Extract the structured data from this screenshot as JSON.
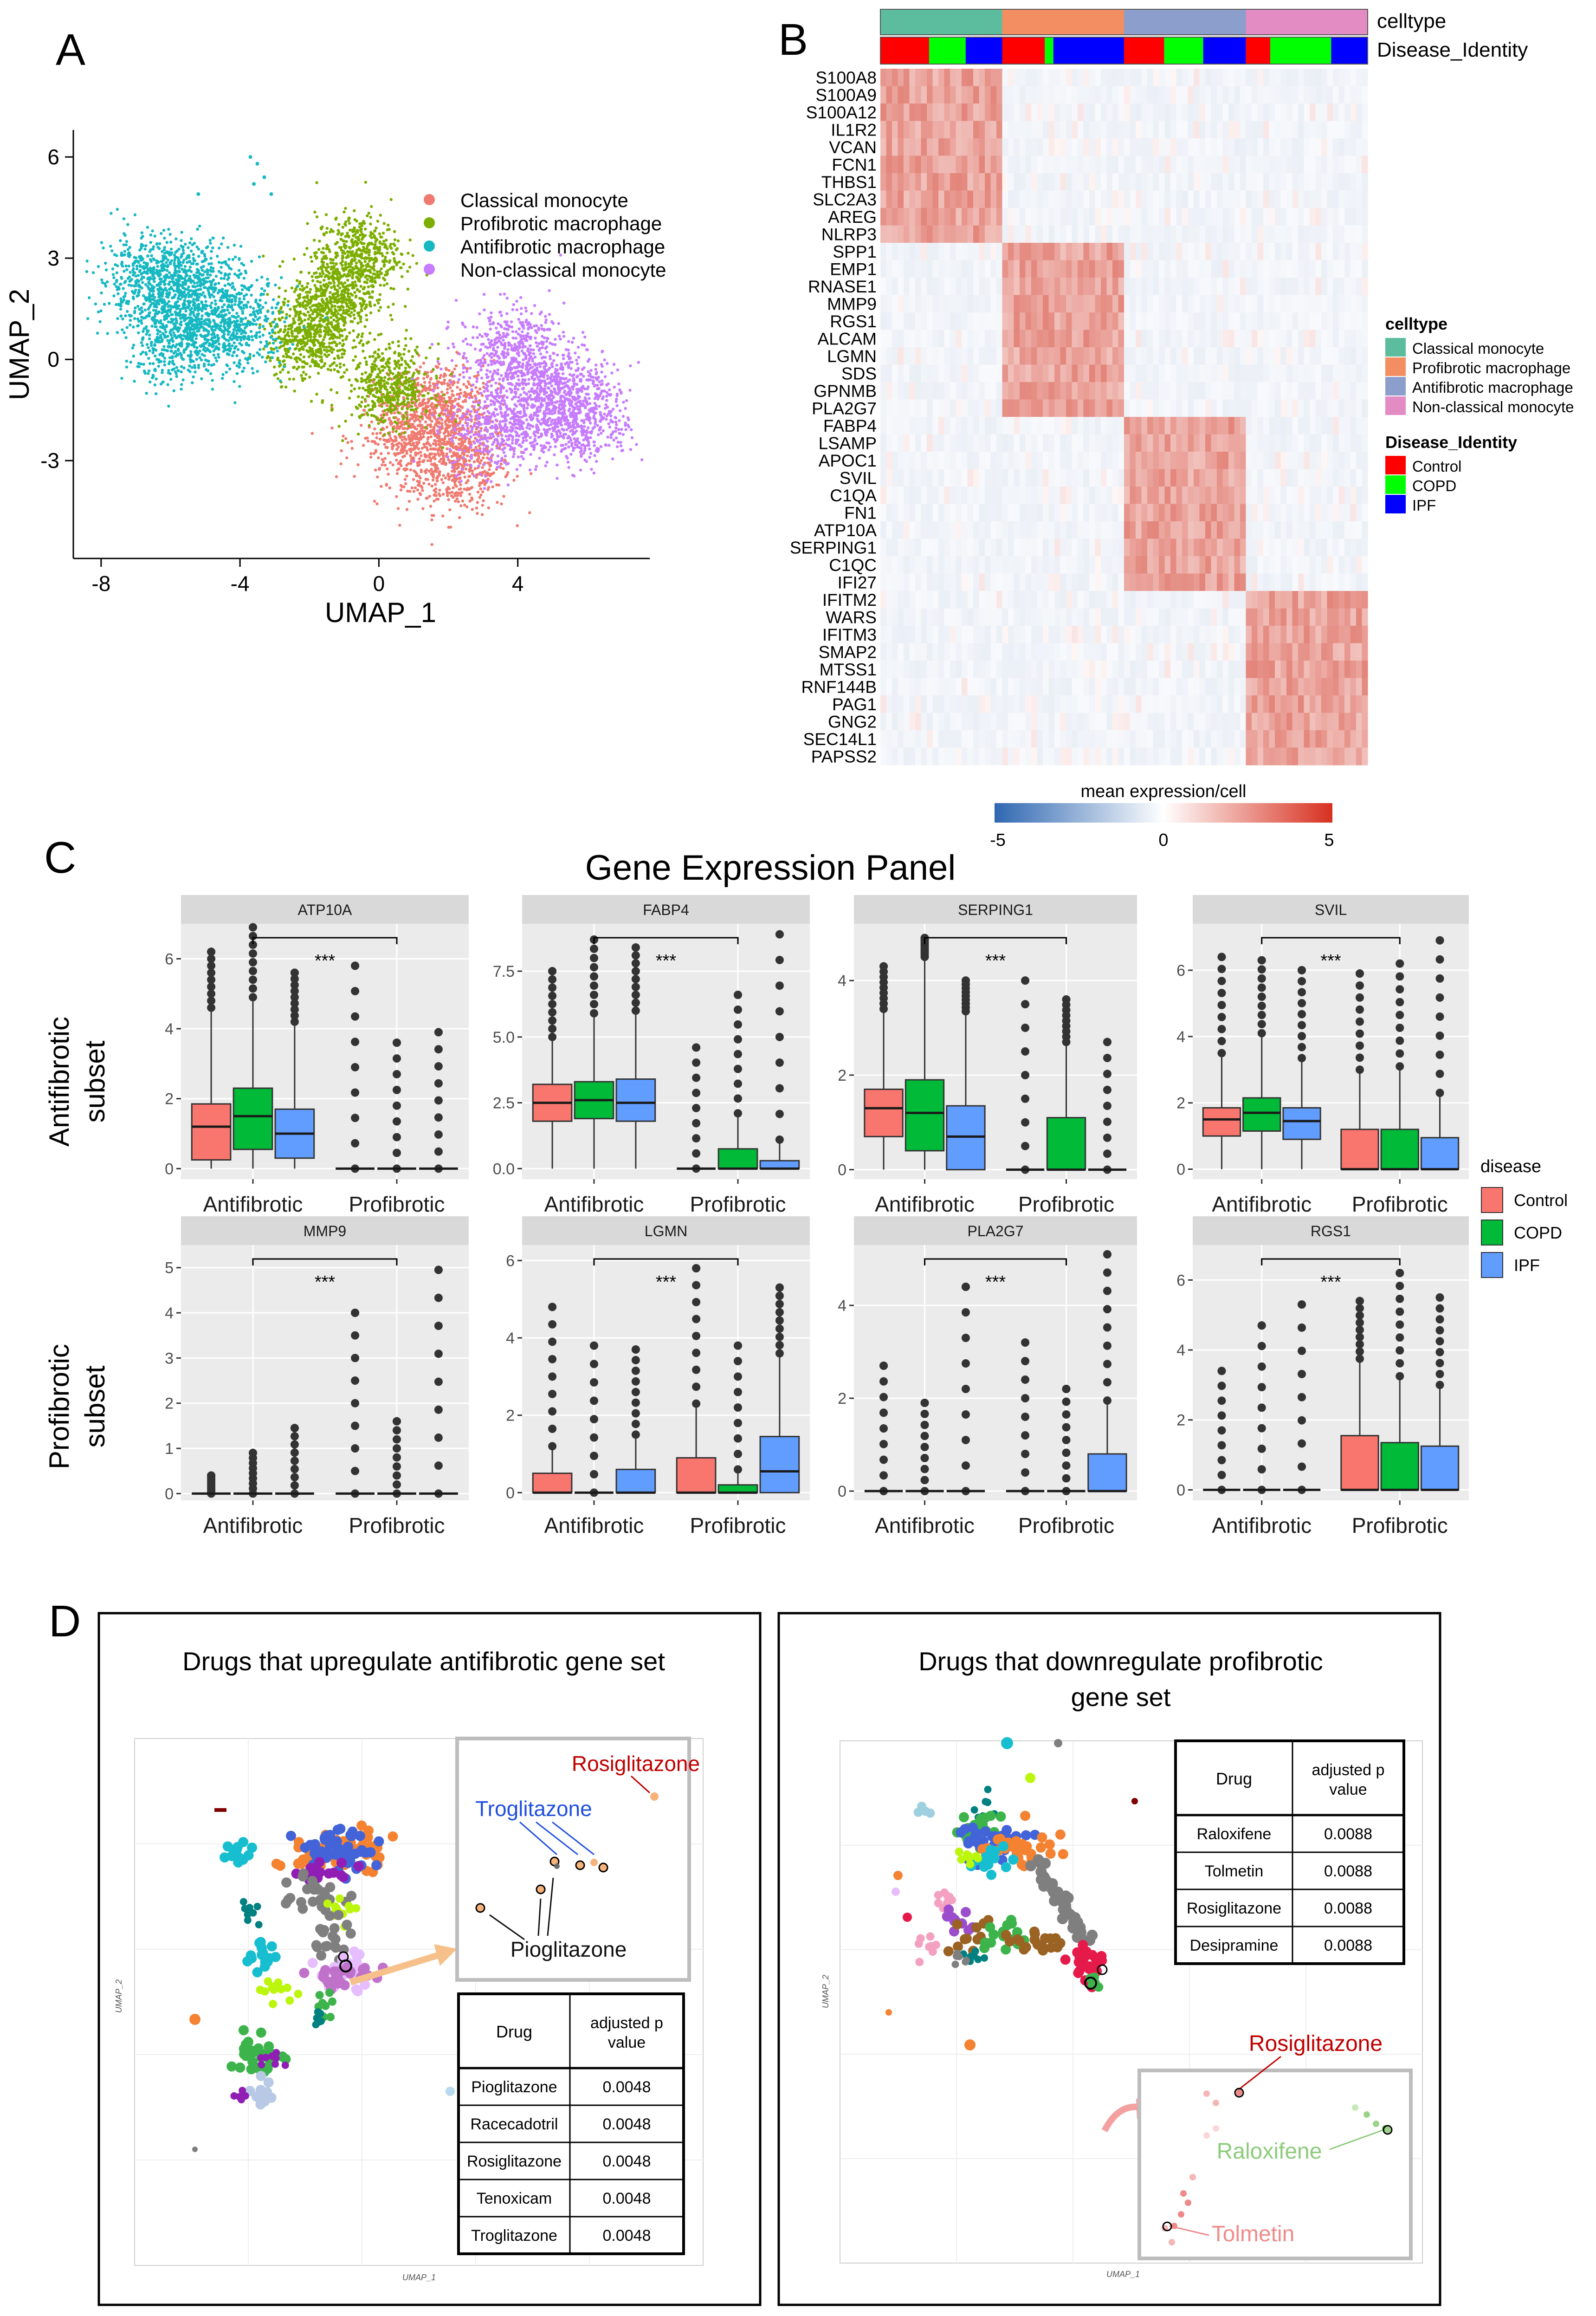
{
  "panel_labels": {
    "a": "A",
    "b": "B",
    "c": "C",
    "d": "D"
  },
  "colors": {
    "classical": "#F07A70",
    "profibrotic": "#7CAE00",
    "antifibrotic": "#16B8C2",
    "nonclassical": "#C77CFF",
    "ct_classical": "#5CBD9E",
    "ct_profibrotic": "#F28E62",
    "ct_antifibrotic": "#8C9ECB",
    "ct_nonclassical": "#E38BC3",
    "control": "#FF0000",
    "copd": "#00FF00",
    "ipf": "#0000FF",
    "box_control": "#F8766D",
    "box_copd": "#00BA38",
    "box_ipf": "#619CFF",
    "ggplot_bg": "#EBEBEB",
    "strip_bg": "#D9D9D9"
  },
  "chart_data": [
    {
      "type": "scatter",
      "panel": "A",
      "xlabel": "UMAP_1",
      "ylabel": "UMAP_2",
      "xlim": [
        -8.8,
        7.8
      ],
      "ylim": [
        -5.9,
        6.8
      ],
      "xticks": [
        "-8",
        "-4",
        "0",
        "4"
      ],
      "xtick_values": [
        -8,
        -4,
        0,
        4
      ],
      "yticks": [
        "-3",
        "0",
        "3",
        "6"
      ],
      "ytick_values": [
        -3,
        0,
        3,
        6
      ],
      "legend": [
        "Classical monocyte",
        "Profibrotic macrophage",
        "Antifibrotic macrophage",
        "Non-classical monocyte"
      ],
      "clusters": [
        {
          "name": "Classical monocyte",
          "color_key": "classical",
          "centers": [
            [
              2.3,
              -3.2
            ],
            [
              1.8,
              -1.4
            ],
            [
              0.9,
              -2.3
            ]
          ],
          "spread": [
            1.0,
            0.9
          ]
        },
        {
          "name": "Profibrotic macrophage",
          "color_key": "profibrotic",
          "centers": [
            [
              -1.3,
              1.8
            ],
            [
              -0.6,
              3.1
            ],
            [
              -2.0,
              0.6
            ],
            [
              0.3,
              -0.8
            ]
          ],
          "spread": [
            0.8,
            0.8
          ]
        },
        {
          "name": "Antifibrotic macrophage",
          "color_key": "antifibrotic",
          "centers": [
            [
              -5.3,
              2.1
            ],
            [
              -6.6,
              2.4
            ],
            [
              -4.2,
              1.0
            ],
            [
              -5.8,
              0.6
            ]
          ],
          "spread": [
            1.0,
            0.9
          ]
        },
        {
          "name": "Non-classical monocyte",
          "color_key": "nonclassical",
          "centers": [
            [
              5.0,
              -0.9
            ],
            [
              3.8,
              0.2
            ],
            [
              5.8,
              -1.8
            ],
            [
              3.5,
              -2.0
            ]
          ],
          "spread": [
            1.0,
            0.9
          ]
        }
      ],
      "outliers": [
        [
          -3.7,
          6.0
        ],
        [
          -3.5,
          5.8
        ],
        [
          -3.3,
          5.4
        ],
        [
          -3.6,
          5.2
        ],
        [
          -3.1,
          4.9
        ],
        [
          -5.2,
          4.9
        ]
      ]
    },
    {
      "type": "heatmap",
      "panel": "B",
      "annotation_rows": [
        "celltype",
        "Disease_Identity"
      ],
      "celltype_segments": [
        "Classical monocyte",
        "Profibrotic macrophage",
        "Antifibrotic macrophage",
        "Non-classical monocyte"
      ],
      "disease_segments": [
        [
          "Control",
          "COPD",
          "IPF"
        ],
        [
          "Control",
          "COPD",
          "IPF"
        ],
        [
          "Control",
          "COPD",
          "IPF"
        ],
        [
          "Control",
          "COPD",
          "IPF"
        ]
      ],
      "disease_fractions": [
        [
          0.4,
          0.3,
          0.3
        ],
        [
          0.35,
          0.07,
          0.58
        ],
        [
          0.33,
          0.32,
          0.35
        ],
        [
          0.2,
          0.5,
          0.3
        ]
      ],
      "genes": [
        "S100A8",
        "S100A9",
        "S100A12",
        "IL1R2",
        "VCAN",
        "FCN1",
        "THBS1",
        "SLC2A3",
        "AREG",
        "NLRP3",
        "SPP1",
        "EMP1",
        "RNASE1",
        "MMP9",
        "RGS1",
        "ALCAM",
        "LGMN",
        "SDS",
        "GPNMB",
        "PLA2G7",
        "FABP4",
        "LSAMP",
        "APOC1",
        "SVIL",
        "C1QA",
        "FN1",
        "ATP10A",
        "SERPING1",
        "C1QC",
        "IFI27",
        "IFITM2",
        "WARS",
        "IFITM3",
        "SMAP2",
        "MTSS1",
        "RNF144B",
        "PAG1",
        "GNG2",
        "SEC14L1",
        "PAPSS2"
      ],
      "gene_group_sizes": [
        10,
        10,
        10,
        10
      ],
      "legend_celltype_title": "celltype",
      "legend_celltype": [
        "Classical monocyte",
        "Profibrotic macrophage",
        "Antifibrotic macrophage",
        "Non-classical monocyte"
      ],
      "legend_disease_title": "Disease_Identity",
      "legend_disease": [
        "Control",
        "COPD",
        "IPF"
      ],
      "colorbar_title": "mean expression/cell",
      "colorbar_range": [
        -5,
        5
      ],
      "colorbar_ticks": [
        "-5",
        "0",
        "5"
      ]
    },
    {
      "type": "box",
      "panel": "C",
      "title": "Gene Expression Panel",
      "categories": [
        "Antifibrotic",
        "Profibrotic"
      ],
      "series_names": [
        "Control",
        "COPD",
        "IPF"
      ],
      "legend_title": "disease",
      "row_labels": [
        [
          "Antifibrotic",
          "subset"
        ],
        [
          "Profibrotic",
          "subset"
        ]
      ],
      "significance": "***",
      "facets": [
        {
          "gene": "ATP10A",
          "ylim": [
            -0.3,
            7.0
          ],
          "yticks": [
            0,
            2,
            4,
            6
          ],
          "ytick_labels": [
            "0",
            "2",
            "4",
            "6"
          ],
          "boxes": [
            [
              0.25,
              1.2,
              1.85,
              4.6,
              0,
              6.2
            ],
            [
              0.55,
              1.5,
              2.3,
              4.9,
              0,
              6.9
            ],
            [
              0.3,
              1.0,
              1.7,
              4.2,
              0,
              5.6
            ],
            [
              0,
              0,
              0,
              0,
              0,
              5.8
            ],
            [
              0,
              0,
              0,
              0,
              0,
              3.6
            ],
            [
              0,
              0,
              0,
              0,
              0,
              3.9
            ]
          ]
        },
        {
          "gene": "FABP4",
          "ylim": [
            -0.4,
            9.3
          ],
          "yticks": [
            0,
            2.5,
            5,
            7.5
          ],
          "ytick_labels": [
            "0.0",
            "2.5",
            "5.0",
            "7.5"
          ],
          "boxes": [
            [
              1.8,
              2.5,
              3.2,
              5.0,
              0,
              7.5
            ],
            [
              1.9,
              2.6,
              3.3,
              5.9,
              0,
              8.7
            ],
            [
              1.8,
              2.5,
              3.4,
              6.0,
              0,
              8.4
            ],
            [
              0,
              0,
              0,
              0,
              0,
              4.6
            ],
            [
              0,
              0,
              0.75,
              2.1,
              0,
              6.6
            ],
            [
              0,
              0,
              0.3,
              1.1,
              0,
              8.9
            ]
          ]
        },
        {
          "gene": "SERPING1",
          "ylim": [
            -0.2,
            5.2
          ],
          "yticks": [
            0,
            2,
            4
          ],
          "ytick_labels": [
            "0",
            "2",
            "4"
          ],
          "boxes": [
            [
              0.7,
              1.3,
              1.7,
              3.4,
              0,
              4.3
            ],
            [
              0.4,
              1.2,
              1.9,
              4.5,
              0,
              4.9
            ],
            [
              0,
              0.7,
              1.35,
              3.35,
              0,
              4.0
            ],
            [
              0,
              0,
              0,
              0,
              0,
              4.0
            ],
            [
              0,
              0,
              1.1,
              2.7,
              0,
              3.6
            ],
            [
              0,
              0,
              0,
              0,
              0,
              2.7
            ]
          ]
        },
        {
          "gene": "SVIL",
          "ylim": [
            -0.3,
            7.4
          ],
          "yticks": [
            0,
            2,
            4,
            6
          ],
          "ytick_labels": [
            "0",
            "2",
            "4",
            "6"
          ],
          "boxes": [
            [
              1.0,
              1.5,
              1.85,
              3.5,
              0,
              6.4
            ],
            [
              1.15,
              1.7,
              2.15,
              4.1,
              0,
              6.3
            ],
            [
              0.9,
              1.45,
              1.85,
              3.35,
              0,
              6.0
            ],
            [
              0,
              0,
              1.2,
              3.0,
              0,
              5.9
            ],
            [
              0,
              0,
              1.2,
              3.1,
              0,
              6.2
            ],
            [
              0,
              0,
              0.95,
              2.3,
              0,
              6.9
            ]
          ]
        },
        {
          "gene": "MMP9",
          "ylim": [
            -0.15,
            5.5
          ],
          "yticks": [
            0,
            1,
            2,
            3,
            4,
            5
          ],
          "ytick_labels": [
            "0",
            "1",
            "2",
            "3",
            "4",
            "5"
          ],
          "boxes": [
            [
              0,
              0,
              0,
              0,
              0,
              0.4
            ],
            [
              0,
              0,
              0,
              0,
              0,
              0.9
            ],
            [
              0,
              0,
              0,
              0,
              0,
              1.45
            ],
            [
              0,
              0,
              0,
              0,
              0,
              4.0
            ],
            [
              0,
              0,
              0,
              0,
              0,
              1.6
            ],
            [
              0,
              0,
              0,
              0,
              0,
              4.95
            ]
          ]
        },
        {
          "gene": "LGMN",
          "ylim": [
            -0.2,
            6.4
          ],
          "yticks": [
            0,
            2,
            4,
            6
          ],
          "ytick_labels": [
            "0",
            "2",
            "4",
            "6"
          ],
          "boxes": [
            [
              0,
              0,
              0.5,
              1.2,
              0,
              4.8
            ],
            [
              0,
              0,
              0,
              0,
              0,
              3.8
            ],
            [
              0,
              0,
              0.6,
              1.5,
              0,
              3.7
            ],
            [
              0,
              0,
              0.9,
              2.3,
              0,
              5.8
            ],
            [
              0,
              0,
              0.2,
              0.6,
              0,
              3.8
            ],
            [
              0,
              0.55,
              1.45,
              3.6,
              0,
              5.3
            ]
          ]
        },
        {
          "gene": "PLA2G7",
          "ylim": [
            -0.2,
            5.3
          ],
          "yticks": [
            0,
            2,
            4
          ],
          "ytick_labels": [
            "0",
            "2",
            "4"
          ],
          "boxes": [
            [
              0,
              0,
              0,
              0,
              0,
              2.7
            ],
            [
              0,
              0,
              0,
              0,
              0,
              1.9
            ],
            [
              0,
              0,
              0,
              0,
              0,
              4.4
            ],
            [
              0,
              0,
              0,
              0,
              0,
              3.2
            ],
            [
              0,
              0,
              0,
              0,
              0,
              2.2
            ],
            [
              0,
              0,
              0.8,
              1.95,
              0,
              5.1
            ]
          ]
        },
        {
          "gene": "RGS1",
          "ylim": [
            -0.3,
            7.0
          ],
          "yticks": [
            0,
            2,
            4,
            6
          ],
          "ytick_labels": [
            "0",
            "2",
            "4",
            "6"
          ],
          "boxes": [
            [
              0,
              0,
              0,
              0,
              0,
              3.4
            ],
            [
              0,
              0,
              0,
              0,
              0,
              4.7
            ],
            [
              0,
              0,
              0,
              0,
              0,
              5.3
            ],
            [
              0,
              0,
              1.55,
              3.75,
              0,
              5.4
            ],
            [
              0,
              0,
              1.35,
              3.25,
              0,
              6.2
            ],
            [
              0,
              0,
              1.25,
              3.0,
              0,
              5.5
            ]
          ]
        }
      ]
    },
    {
      "type": "scatter",
      "panel": "D-left",
      "title": "Drugs that upregulate antifibrotic gene set",
      "xlabel": "UMAP_1",
      "ylabel": "UMAP_2",
      "inset_labels": [
        "Rosiglitazone",
        "Troglitazone",
        "Pioglitazone"
      ],
      "table_header": [
        "Drug",
        "adjusted p value"
      ],
      "table_rows": [
        [
          "Pioglitazone",
          "0.0048"
        ],
        [
          "Racecadotril",
          "0.0048"
        ],
        [
          "Rosiglitazone",
          "0.0048"
        ],
        [
          "Tenoxicam",
          "0.0048"
        ],
        [
          "Troglitazone",
          "0.0048"
        ]
      ]
    },
    {
      "type": "scatter",
      "panel": "D-right",
      "title": "Drugs that downregulate profibrotic gene set",
      "xlabel": "UMAP_1",
      "ylabel": "UMAP_2",
      "inset_labels": [
        "Rosiglitazone",
        "Raloxifene",
        "Tolmetin"
      ],
      "table_header": [
        "Drug",
        "adjusted p value"
      ],
      "table_rows": [
        [
          "Raloxifene",
          "0.0088"
        ],
        [
          "Tolmetin",
          "0.0088"
        ],
        [
          "Rosiglitazone",
          "0.0088"
        ],
        [
          "Desipramine",
          "0.0088"
        ]
      ]
    }
  ]
}
